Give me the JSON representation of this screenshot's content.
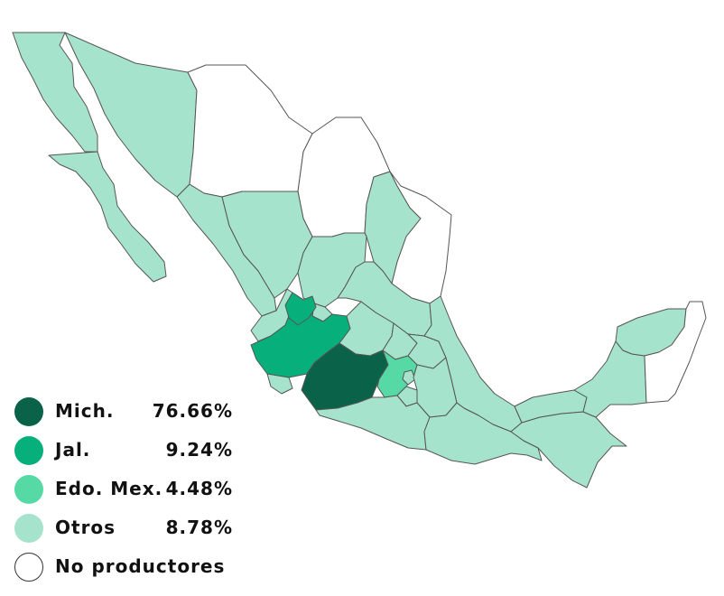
{
  "map": {
    "colors": {
      "mich": "#0a6348",
      "jal": "#07b07a",
      "edomex": "#57d9a6",
      "otros": "#a6e3cd",
      "no_productores": "#ffffff",
      "border": "#555555"
    }
  },
  "legend": {
    "items": [
      {
        "label": "Mich.",
        "value": "76.66%",
        "color": "#0a6348"
      },
      {
        "label": "Jal.",
        "value": "9.24%",
        "color": "#07b07a"
      },
      {
        "label": "Edo. Mex.",
        "value": "4.48%",
        "color": "#57d9a6"
      },
      {
        "label": "Otros",
        "value": "8.78%",
        "color": "#a6e3cd"
      },
      {
        "label": "No productores",
        "value": "",
        "color": "#ffffff"
      }
    ]
  }
}
